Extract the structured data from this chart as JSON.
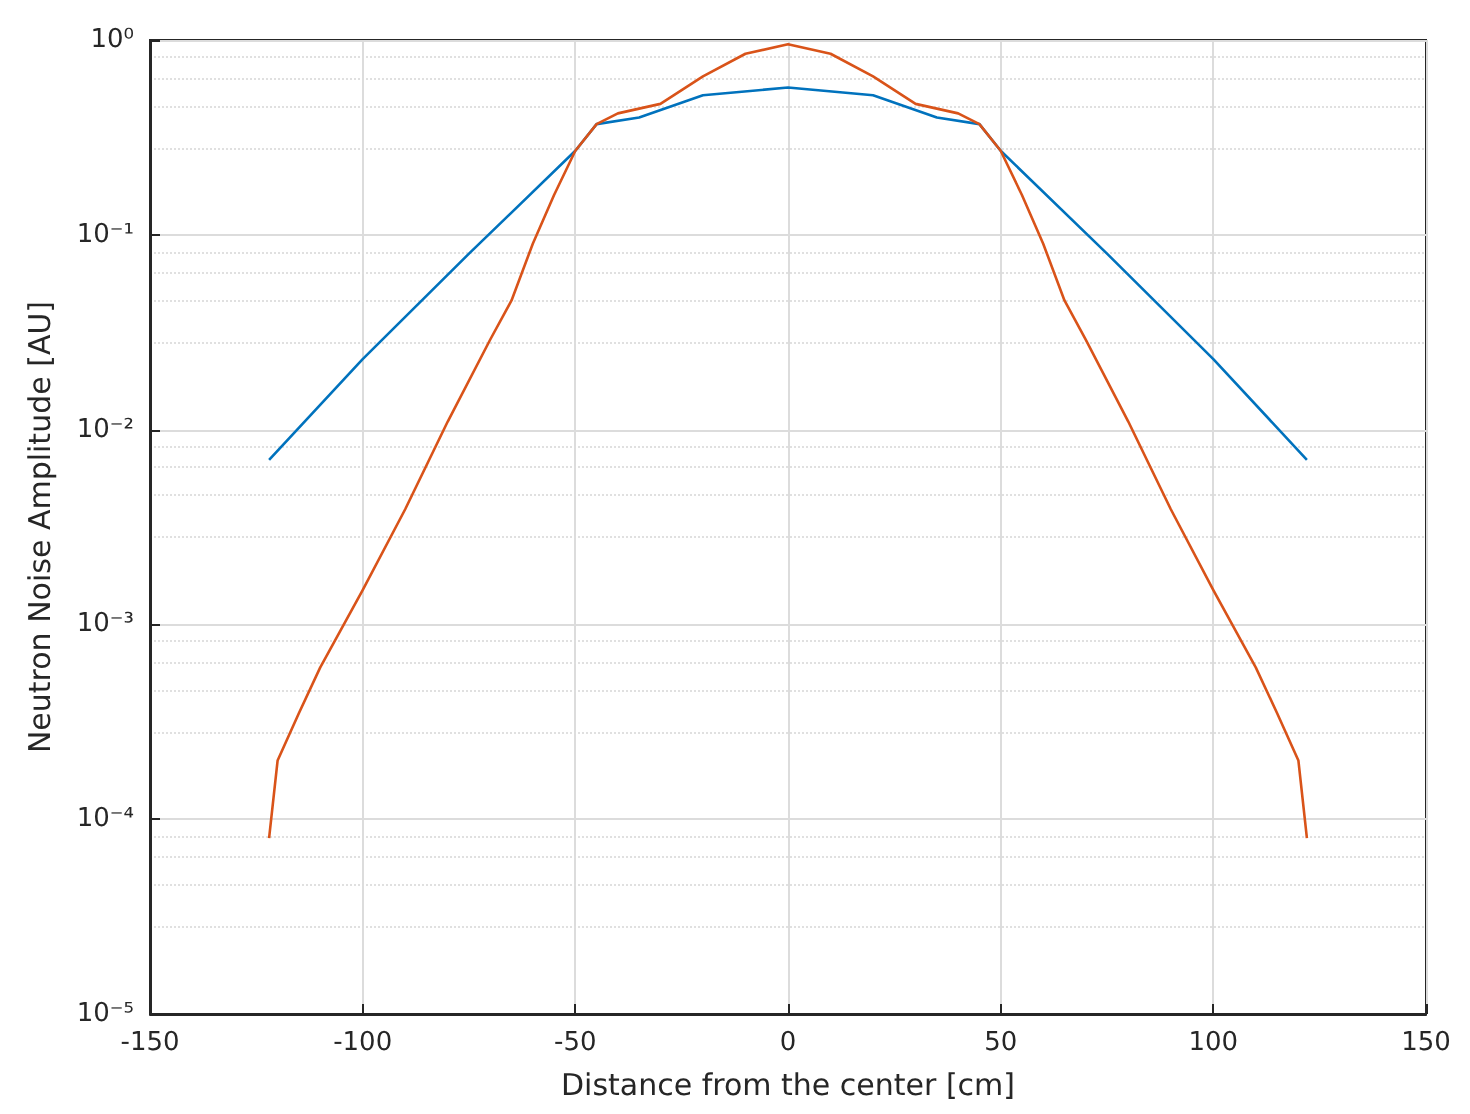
{
  "chart_data": {
    "type": "line",
    "xlabel": "Distance from the center [cm]",
    "ylabel": "Neutron Noise Amplitude [AU]",
    "log": "y",
    "grid": true,
    "legend": false,
    "marker": "none",
    "line_style": "solid",
    "xlim": [
      -150,
      150
    ],
    "xticks": [
      -150,
      -100,
      -50,
      0,
      50,
      100,
      150
    ],
    "ylim": [
      1e-05,
      1
    ],
    "yticks": [
      {
        "value": 1e-05,
        "label": "10⁻⁵"
      },
      {
        "value": 0.0001,
        "label": "10⁻⁴"
      },
      {
        "value": 0.001,
        "label": "10⁻³"
      },
      {
        "value": 0.01,
        "label": "10⁻²"
      },
      {
        "value": 0.1,
        "label": "10⁻¹"
      },
      {
        "value": 1,
        "label": "10⁰"
      }
    ],
    "series": [
      {
        "color": "#0072bd",
        "x": [
          -122,
          -100,
          -75,
          -50,
          -45,
          -35,
          -20,
          0,
          20,
          35,
          45,
          50,
          75,
          100,
          122
        ],
        "values": [
          0.007,
          0.023,
          0.08,
          0.27,
          0.37,
          0.4,
          0.52,
          0.57,
          0.52,
          0.4,
          0.37,
          0.27,
          0.08,
          0.023,
          0.007
        ]
      },
      {
        "color": "#d95319",
        "x": [
          -122,
          -120,
          -115,
          -110,
          -100,
          -90,
          -80,
          -70,
          -65,
          -60,
          -55,
          -50,
          -45,
          -40,
          -30,
          -20,
          -10,
          0,
          10,
          20,
          30,
          40,
          45,
          50,
          55,
          60,
          65,
          70,
          80,
          90,
          100,
          110,
          115,
          120,
          122
        ],
        "values": [
          8e-05,
          0.0002,
          0.00035,
          0.0006,
          0.0015,
          0.0039,
          0.011,
          0.029,
          0.046,
          0.09,
          0.16,
          0.27,
          0.37,
          0.42,
          0.47,
          0.65,
          0.85,
          0.95,
          0.85,
          0.65,
          0.47,
          0.42,
          0.37,
          0.27,
          0.16,
          0.09,
          0.046,
          0.029,
          0.011,
          0.0039,
          0.0015,
          0.0006,
          0.00035,
          0.0002,
          8e-05
        ]
      }
    ]
  }
}
